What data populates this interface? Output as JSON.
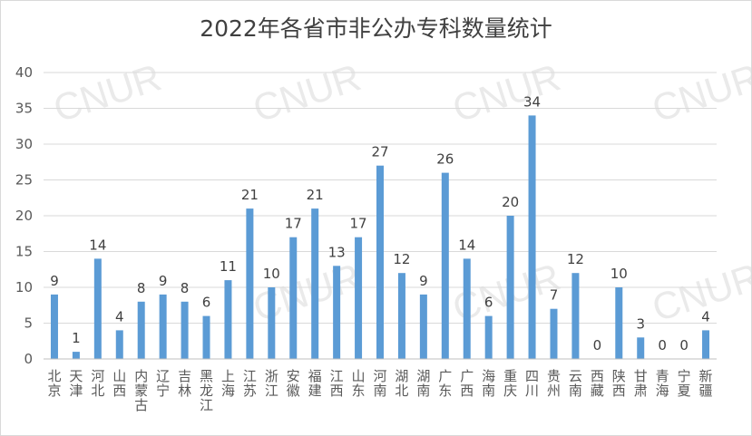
{
  "chart_data": {
    "type": "bar",
    "title": "2022年各省市非公办专科数量统计",
    "xlabel": "",
    "ylabel": "",
    "ylim": [
      0,
      40
    ],
    "yticks": [
      0,
      5,
      10,
      15,
      20,
      25,
      30,
      35,
      40
    ],
    "grid": true,
    "legend": "none",
    "bar_color": "#5B9BD5",
    "categories": [
      "北京",
      "天津",
      "河北",
      "山西",
      "内蒙古",
      "辽宁",
      "吉林",
      "黑龙江",
      "上海",
      "江苏",
      "浙江",
      "安徽",
      "福建",
      "江西",
      "山东",
      "河南",
      "湖北",
      "湖南",
      "广东",
      "广西",
      "海南",
      "重庆",
      "四川",
      "贵州",
      "云南",
      "西藏",
      "陕西",
      "甘肃",
      "青海",
      "宁夏",
      "新疆"
    ],
    "values": [
      9,
      1,
      14,
      4,
      8,
      9,
      8,
      6,
      11,
      21,
      10,
      17,
      21,
      13,
      17,
      27,
      12,
      9,
      26,
      14,
      6,
      20,
      34,
      7,
      12,
      0,
      10,
      3,
      0,
      0,
      4
    ]
  },
  "watermark": "CNUR"
}
